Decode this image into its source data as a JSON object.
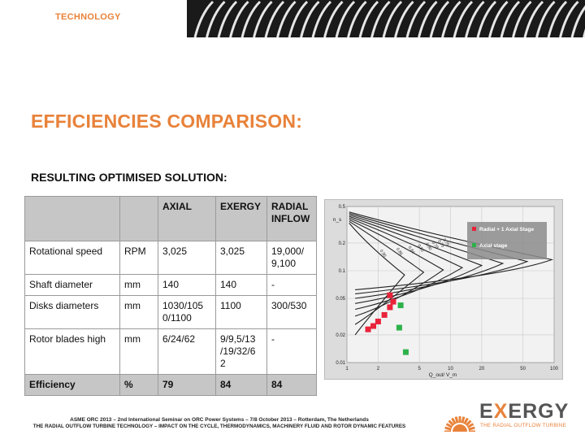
{
  "header": {
    "section_label": "TECHNOLOGY"
  },
  "title": "EFFICIENCIES COMPARISON:",
  "subtitle": "RESULTING OPTIMISED SOLUTION:",
  "table": {
    "headers": [
      "",
      "",
      "AXIAL",
      "EXERGY",
      "RADIAL INFLOW"
    ],
    "rows": [
      {
        "label": "Rotational speed",
        "unit": "RPM",
        "axial": "3,025",
        "exergy": "3,025",
        "radial": "19,000/ 9,100"
      },
      {
        "label": "Shaft diameter",
        "unit": "mm",
        "axial": "140",
        "exergy": "140",
        "radial": "-"
      },
      {
        "label": "Disks diameters",
        "unit": "mm",
        "axial": "1030/105 0/1100",
        "exergy": "1100",
        "radial": "300/530"
      },
      {
        "label": "Rotor blades high",
        "unit": "mm",
        "axial": "6/24/62",
        "exergy": "9/9,5/13 /19/32/6 2",
        "radial": "-"
      }
    ],
    "total": {
      "label": "Efficiency",
      "unit": "%",
      "axial": "79",
      "exergy": "84",
      "radial": "84"
    }
  },
  "chart_data": {
    "type": "scatter",
    "y_tick_labels": [
      "0.5",
      "0.2",
      "0.1",
      "0.05",
      "0.02",
      "0.01"
    ],
    "x_tick_labels": [
      "1",
      "2",
      "5",
      "10",
      "20",
      "50",
      "100"
    ],
    "xlabel": "Q_out/ V_m",
    "ylabel": "n_s",
    "contour_labels": [
      "0.90",
      "0.86",
      "0.84",
      "0.82",
      "0.80",
      "0.78",
      "0.75",
      "0.70"
    ],
    "legend": [
      "Radial + 1 Axial Stage",
      "Axial stage"
    ],
    "series": [
      {
        "name": "Radial + 1 Axial Stage",
        "color": "#e8233a",
        "points": [
          [
            1.6,
            0.023
          ],
          [
            1.8,
            0.025
          ],
          [
            2.0,
            0.028
          ],
          [
            2.3,
            0.033
          ],
          [
            2.6,
            0.04
          ],
          [
            2.8,
            0.046
          ],
          [
            2.6,
            0.054
          ]
        ]
      },
      {
        "name": "Axial stage",
        "color": "#2db24a",
        "points": [
          [
            3.3,
            0.042
          ],
          [
            3.2,
            0.024
          ],
          [
            3.7,
            0.013
          ]
        ]
      }
    ],
    "colors": {
      "radial": "#e8233a",
      "axial": "#2db24a"
    }
  },
  "footer": {
    "line1": "ASME ORC 2013 – 2nd International Seminar on ORC Power Systems – 7/8 October 2013 – Rotterdam, The Netherlands",
    "line2": "THE RADIAL OUTFLOW TURBINE TECHNOLOGY – IMPACT ON THE CYCLE, THERMODYNAMICS, MACHINERY FLUID AND ROTOR DYNAMIC FEATURES"
  },
  "logo": {
    "name": "EXERGY",
    "tagline": "THE RADIAL OUTFLOW TURBINE"
  },
  "brand_colors": {
    "orange": "#e8823a",
    "gray": "#555555"
  }
}
